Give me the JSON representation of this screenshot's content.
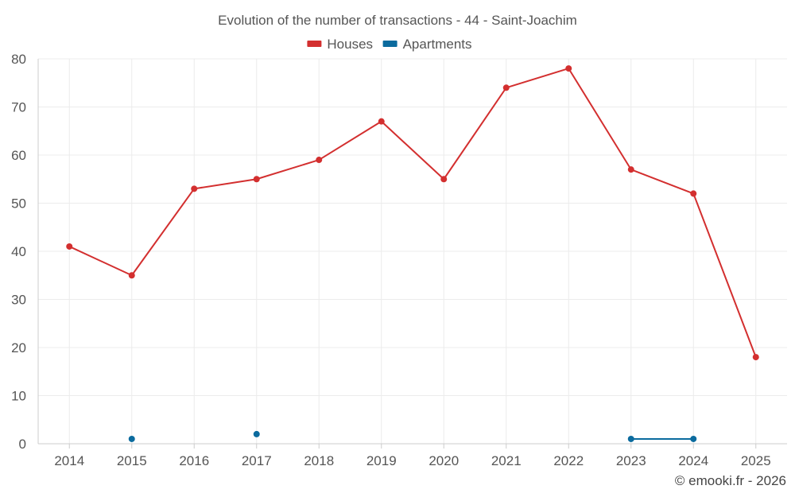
{
  "chart_data": {
    "type": "line",
    "title": "Evolution of the number of transactions - 44 - Saint-Joachim",
    "xlabel": "",
    "ylabel": "",
    "categories": [
      "2014",
      "2015",
      "2016",
      "2017",
      "2018",
      "2019",
      "2020",
      "2021",
      "2022",
      "2023",
      "2024",
      "2025"
    ],
    "ylim": [
      0,
      80
    ],
    "yticks": [
      0,
      10,
      20,
      30,
      40,
      50,
      60,
      70,
      80
    ],
    "grid": true,
    "legend_position": "top-center",
    "series": [
      {
        "name": "Houses",
        "color": "#d32f2f",
        "values": [
          41,
          35,
          53,
          55,
          59,
          67,
          55,
          74,
          78,
          57,
          52,
          18
        ]
      },
      {
        "name": "Apartments",
        "color": "#0b6b9e",
        "values": [
          null,
          1,
          null,
          2,
          null,
          null,
          null,
          null,
          null,
          1,
          1,
          null
        ]
      }
    ],
    "credit": "© emooki.fr - 2026"
  }
}
